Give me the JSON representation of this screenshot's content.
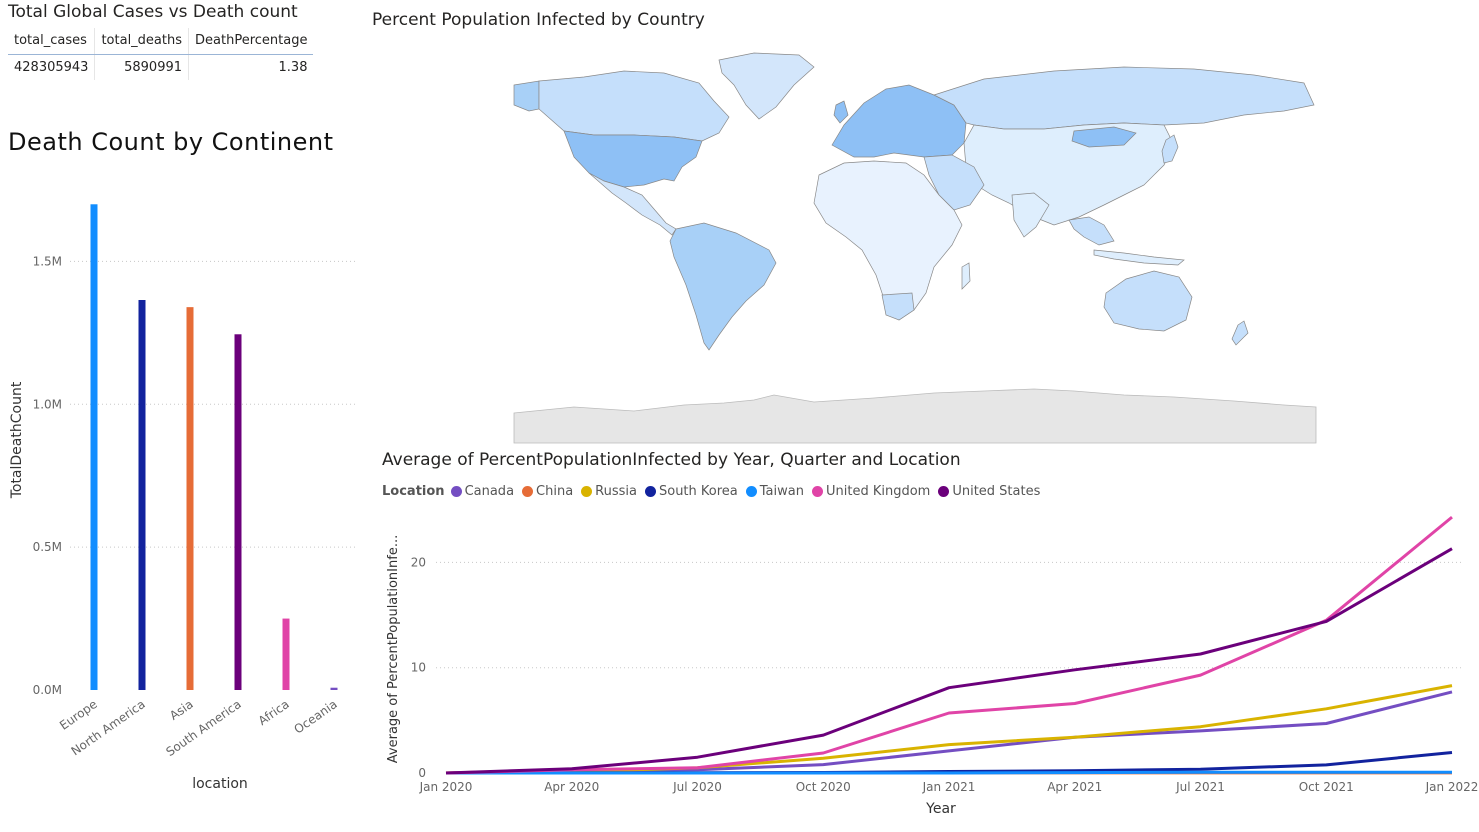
{
  "kpi_table": {
    "title": "Total Global Cases vs Death count",
    "headers": [
      "total_cases",
      "total_deaths",
      "DeathPercentage"
    ],
    "row": [
      "428305943",
      "5890991",
      "1.38"
    ]
  },
  "map_panel": {
    "title": "Percent Population Infected by Country"
  },
  "chart_data": [
    {
      "type": "bar",
      "title": "Death Count by Continent",
      "xlabel": "location",
      "ylabel": "TotalDeathCount",
      "categories": [
        "Europe",
        "North America",
        "Asia",
        "South America",
        "Africa",
        "Oceania"
      ],
      "values": [
        1700000,
        1365000,
        1340000,
        1245000,
        250000,
        8000
      ],
      "colors": [
        "#118DFF",
        "#12239E",
        "#E66C37",
        "#6B007B",
        "#E044A7",
        "#744EC2"
      ],
      "ylim": [
        0,
        1750000
      ],
      "yticks": [
        0,
        500000,
        1000000,
        1500000
      ],
      "ytick_labels": [
        "0.0M",
        "0.5M",
        "1.0M",
        "1.5M"
      ],
      "grid": true
    },
    {
      "type": "line",
      "title": "Average of PercentPopulationInfected by Year, Quarter and Location",
      "xlabel": "Year",
      "ylabel": "Average of PercentPopulationInfe...",
      "legend_title": "Location",
      "legend_position": "top-left",
      "x": [
        "Jan 2020",
        "Apr 2020",
        "Jul 2020",
        "Oct 2020",
        "Jan 2021",
        "Apr 2021",
        "Jul 2021",
        "Oct 2021",
        "Jan 2022"
      ],
      "ylim": [
        0,
        24.5
      ],
      "yticks": [
        0,
        10,
        20
      ],
      "grid": true,
      "series": [
        {
          "name": "Canada",
          "color": "#744EC2",
          "values": [
            0,
            0.2,
            0.3,
            0.8,
            2.1,
            3.4,
            4.0,
            4.7,
            7.7
          ]
        },
        {
          "name": "China",
          "color": "#E66C37",
          "values": [
            0.01,
            0.01,
            0.01,
            0.01,
            0.01,
            0.01,
            0.01,
            0.01,
            0.01
          ]
        },
        {
          "name": "Russia",
          "color": "#D9B300",
          "values": [
            0,
            0.1,
            0.5,
            1.4,
            2.7,
            3.4,
            4.4,
            6.1,
            8.3
          ]
        },
        {
          "name": "South Korea",
          "color": "#12239E",
          "values": [
            0,
            0.02,
            0.03,
            0.05,
            0.14,
            0.22,
            0.36,
            0.77,
            1.95
          ]
        },
        {
          "name": "Taiwan",
          "color": "#118DFF",
          "values": [
            0,
            0,
            0,
            0,
            0,
            0.04,
            0.07,
            0.07,
            0.08
          ]
        },
        {
          "name": "United Kingdom",
          "color": "#E044A7",
          "values": [
            0,
            0.3,
            0.5,
            1.9,
            5.7,
            6.6,
            9.3,
            14.5,
            24.3
          ]
        },
        {
          "name": "United States",
          "color": "#6B007B",
          "values": [
            0,
            0.4,
            1.5,
            3.6,
            8.1,
            9.8,
            11.3,
            14.4,
            21.3
          ]
        }
      ]
    }
  ]
}
